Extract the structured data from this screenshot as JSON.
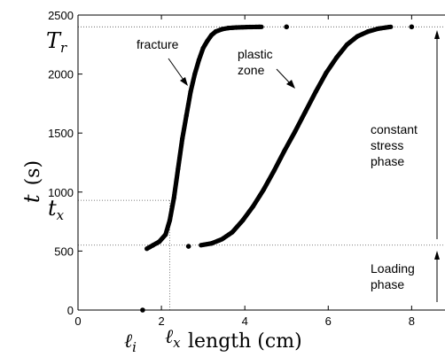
{
  "chart_data": {
    "type": "scatter",
    "xlabel": "length (cm)",
    "ylabel": "t (s)",
    "xlim": [
      0,
      8.8
    ],
    "ylim": [
      0,
      2500
    ],
    "xticks": [
      0,
      2,
      4,
      6,
      8
    ],
    "yticks": [
      0,
      500,
      1000,
      1500,
      2000,
      2500
    ],
    "grid": false,
    "series": [
      {
        "name": "fracture",
        "points": [
          [
            1.55,
            0
          ],
          [
            1.65,
            520
          ],
          [
            1.8,
            550
          ],
          [
            1.95,
            580
          ],
          [
            2.1,
            640
          ],
          [
            2.2,
            760
          ],
          [
            2.3,
            950
          ],
          [
            2.4,
            1200
          ],
          [
            2.5,
            1450
          ],
          [
            2.6,
            1650
          ],
          [
            2.7,
            1850
          ],
          [
            2.8,
            2000
          ],
          [
            2.9,
            2120
          ],
          [
            3.0,
            2220
          ],
          [
            3.1,
            2280
          ],
          [
            3.2,
            2330
          ],
          [
            3.3,
            2360
          ],
          [
            3.45,
            2380
          ],
          [
            3.6,
            2390
          ],
          [
            3.8,
            2395
          ],
          [
            4.05,
            2398
          ],
          [
            4.35,
            2400
          ],
          [
            4.4,
            2400
          ],
          [
            5.0,
            2400
          ]
        ]
      },
      {
        "name": "plastic zone",
        "points": [
          [
            2.65,
            540
          ],
          [
            2.95,
            550
          ],
          [
            3.2,
            565
          ],
          [
            3.45,
            600
          ],
          [
            3.7,
            660
          ],
          [
            3.95,
            760
          ],
          [
            4.2,
            880
          ],
          [
            4.45,
            1020
          ],
          [
            4.7,
            1180
          ],
          [
            4.95,
            1350
          ],
          [
            5.2,
            1510
          ],
          [
            5.45,
            1680
          ],
          [
            5.7,
            1850
          ],
          [
            5.95,
            2010
          ],
          [
            6.2,
            2140
          ],
          [
            6.45,
            2250
          ],
          [
            6.7,
            2320
          ],
          [
            6.95,
            2360
          ],
          [
            7.2,
            2385
          ],
          [
            7.45,
            2398
          ],
          [
            7.5,
            2400
          ],
          [
            8.0,
            2400
          ]
        ]
      }
    ],
    "reference_lines": {
      "T_r": 2400,
      "t_x": 930,
      "loading_end": 550,
      "l_x": 2.2
    },
    "annotations": {
      "fracture": "fracture",
      "plastic_line1": "plastic",
      "plastic_line2": "zone",
      "constant_line1": "constant",
      "constant_line2": "stress",
      "constant_line3": "phase",
      "loading_line1": "Loading",
      "loading_line2": "phase"
    },
    "axis_symbols": {
      "T_r_main": "T",
      "T_r_sub": "r",
      "t_x_main": "t",
      "t_x_sub": "x",
      "l_i_main": "ℓ",
      "l_i_sub": "i",
      "l_x_main": "ℓ",
      "l_x_sub": "x",
      "ylabel_var": "t",
      "ylabel_unit": "(s)"
    }
  }
}
